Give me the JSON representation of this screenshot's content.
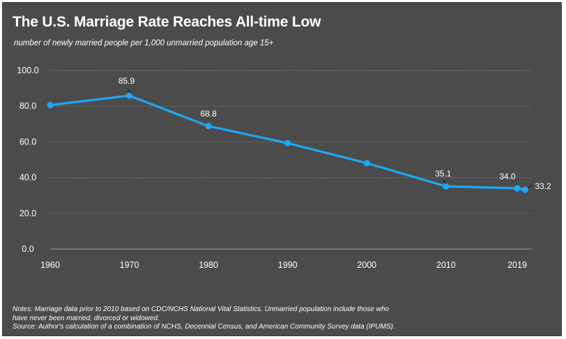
{
  "title": "The U.S. Marriage Rate Reaches All-time Low",
  "subtitle": "number of newly married people per 1,000 unmarried population age 15+",
  "notes": {
    "line1": "Notes: Marriage data prior to 2010 based on CDC/NCHS National Vital Statistics. Unmarried population include those who",
    "line2": "have never been married, divorced or widowed.",
    "source": "Source: Author's calculation of a combination of NCHS, Decennial Census, and American Community Survey data (IPUMS)."
  },
  "colors": {
    "background": "#4b4b4b",
    "line": "#1ea7f5",
    "text": "#ffffff",
    "gridline": "#8a8a8a"
  },
  "chart_data": {
    "type": "line",
    "title": "The U.S. Marriage Rate Reaches All-time Low",
    "subtitle": "number of newly married people per 1,000 unmarried population age 15+",
    "xlabel": "",
    "ylabel": "",
    "ylim": [
      0,
      100
    ],
    "yticks": [
      "0.0",
      "20.0",
      "40.0",
      "60.0",
      "80.0",
      "100.0"
    ],
    "xticks": [
      "1960",
      "1970",
      "1980",
      "1990",
      "2000",
      "2010",
      "2019"
    ],
    "grid": true,
    "legend": "none",
    "series": [
      {
        "points": [
          {
            "x": 1960,
            "y": 80.6,
            "label": ""
          },
          {
            "x": 1970,
            "y": 85.9,
            "label": "85.9"
          },
          {
            "x": 1980,
            "y": 68.8,
            "label": "68.8"
          },
          {
            "x": 1990,
            "y": 59.3,
            "label": ""
          },
          {
            "x": 2000,
            "y": 48.1,
            "label": ""
          },
          {
            "x": 2010,
            "y": 35.1,
            "label": "35.1"
          },
          {
            "x": 2019,
            "y": 34.0,
            "label": "34.0"
          },
          {
            "x": 2020,
            "y": 33.2,
            "label": "33.2"
          }
        ]
      }
    ]
  }
}
